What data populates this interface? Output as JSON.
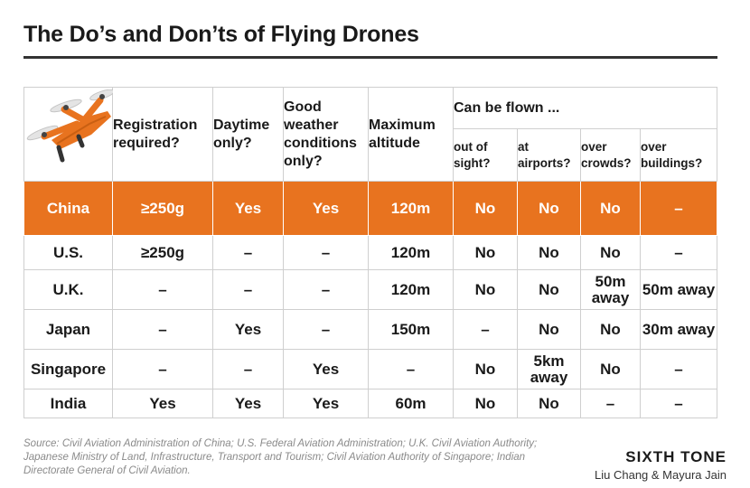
{
  "title": "The Do’s and Don’ts of Flying Drones",
  "headers": {
    "registration": "Registration required?",
    "daytime": "Daytime only?",
    "weather": "Good weather conditions only?",
    "altitude": "Maximum altitude",
    "can_be_flown": "Can be flown ...",
    "out_of_sight": "out of sight?",
    "airports": "at airports?",
    "crowds": "over crowds?",
    "buildings": "over buildings?"
  },
  "rows": [
    {
      "country": "China",
      "registration": "≥250g",
      "daytime": "Yes",
      "weather": "Yes",
      "altitude": "120m",
      "out_of_sight": "No",
      "airports": "No",
      "crowds": "No",
      "buildings": "–",
      "highlight": true
    },
    {
      "country": "U.S.",
      "registration": "≥250g",
      "daytime": "–",
      "weather": "–",
      "altitude": "120m",
      "out_of_sight": "No",
      "airports": "No",
      "crowds": "No",
      "buildings": "–"
    },
    {
      "country": "U.K.",
      "registration": "–",
      "daytime": "–",
      "weather": "–",
      "altitude": "120m",
      "out_of_sight": "No",
      "airports": "No",
      "crowds": "50m away",
      "buildings": "50m away"
    },
    {
      "country": "Japan",
      "registration": "–",
      "daytime": "Yes",
      "weather": "–",
      "altitude": "150m",
      "out_of_sight": "–",
      "airports": "No",
      "crowds": "No",
      "buildings": "30m away"
    },
    {
      "country": "Singapore",
      "registration": "–",
      "daytime": "–",
      "weather": "Yes",
      "altitude": "–",
      "out_of_sight": "No",
      "airports": "5km away",
      "crowds": "No",
      "buildings": "–"
    },
    {
      "country": "India",
      "registration": "Yes",
      "daytime": "Yes",
      "weather": "Yes",
      "altitude": "60m",
      "out_of_sight": "No",
      "airports": "No",
      "crowds": "–",
      "buildings": "–"
    }
  ],
  "source": "Source: Civil Aviation Administration of China; U.S. Federal Aviation Administration; U.K. Civil Aviation Authority; Japanese Ministry of Land, Infrastructure, Transport and Tourism; Civil Aviation Authority of Singapore; Indian Directorate General of Civil Aviation.",
  "brand": "SIXTH TONE",
  "authors": "Liu Chang & Mayura Jain",
  "colors": {
    "highlight": "#e8731f",
    "text": "#1a1a1a",
    "grid": "#cfcfcf"
  },
  "icons": {
    "corner": "drone-icon"
  }
}
